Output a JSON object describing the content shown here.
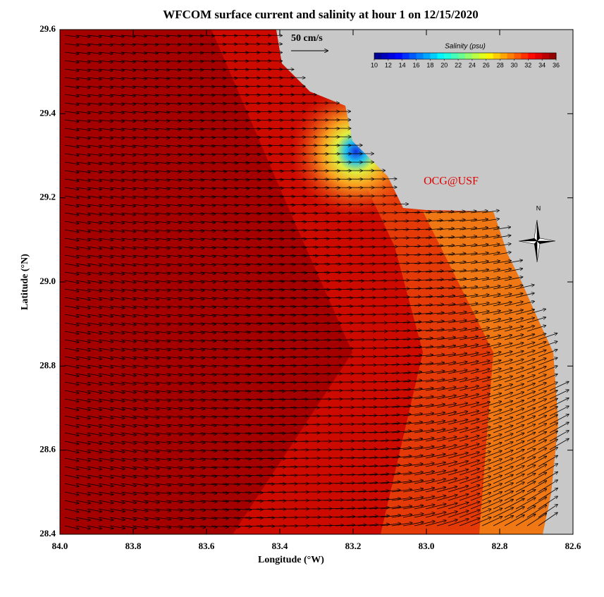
{
  "title": "WFCOM surface current and salinity at hour 1 on 12/15/2020",
  "xlabel": "Longitude (°W)",
  "ylabel": "Latitude (°N)",
  "xlim": [
    84,
    82.6
  ],
  "ylim": [
    28.4,
    29.6
  ],
  "xticks": [
    {
      "value": 84,
      "label": "84.0"
    },
    83.8,
    83.6,
    83.4,
    83.2,
    {
      "value": 83,
      "label": "83.0"
    },
    82.8,
    82.6
  ],
  "yticks": [
    28.4,
    28.6,
    28.8,
    {
      "value": 29,
      "label": "29.0"
    },
    29.2,
    29.4,
    29.6
  ],
  "colorbar": {
    "label": "Salinity (psu)",
    "ticks": [
      10,
      12,
      14,
      16,
      18,
      20,
      22,
      24,
      26,
      28,
      30,
      32,
      34,
      36
    ]
  },
  "scale_label": "50 cm/s",
  "credit": "OCG@USF",
  "north": "N"
}
